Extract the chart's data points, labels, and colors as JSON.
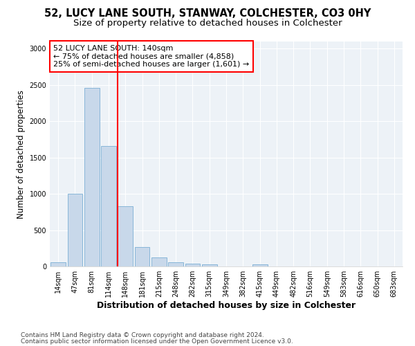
{
  "title1": "52, LUCY LANE SOUTH, STANWAY, COLCHESTER, CO3 0HY",
  "title2": "Size of property relative to detached houses in Colchester",
  "xlabel": "Distribution of detached houses by size in Colchester",
  "ylabel": "Number of detached properties",
  "footer1": "Contains HM Land Registry data © Crown copyright and database right 2024.",
  "footer2": "Contains public sector information licensed under the Open Government Licence v3.0.",
  "bar_labels": [
    "14sqm",
    "47sqm",
    "81sqm",
    "114sqm",
    "148sqm",
    "181sqm",
    "215sqm",
    "248sqm",
    "282sqm",
    "315sqm",
    "349sqm",
    "382sqm",
    "415sqm",
    "449sqm",
    "482sqm",
    "516sqm",
    "549sqm",
    "583sqm",
    "616sqm",
    "650sqm",
    "683sqm"
  ],
  "bar_values": [
    55,
    1000,
    2460,
    1660,
    830,
    270,
    125,
    55,
    35,
    25,
    0,
    0,
    30,
    0,
    0,
    0,
    0,
    0,
    0,
    0,
    0
  ],
  "bar_color": "#c8d8ea",
  "bar_edge_color": "#7bafd4",
  "vline_color": "red",
  "vline_x_index": 4,
  "annotation_text": "52 LUCY LANE SOUTH: 140sqm\n← 75% of detached houses are smaller (4,858)\n25% of semi-detached houses are larger (1,601) →",
  "annotation_box_color": "white",
  "annotation_box_edge_color": "red",
  "ylim": [
    0,
    3100
  ],
  "yticks": [
    0,
    500,
    1000,
    1500,
    2000,
    2500,
    3000
  ],
  "bg_color": "#edf2f7",
  "title1_fontsize": 10.5,
  "title2_fontsize": 9.5,
  "xlabel_fontsize": 9,
  "ylabel_fontsize": 8.5,
  "tick_fontsize": 7,
  "annotation_fontsize": 8,
  "footer_fontsize": 6.5
}
